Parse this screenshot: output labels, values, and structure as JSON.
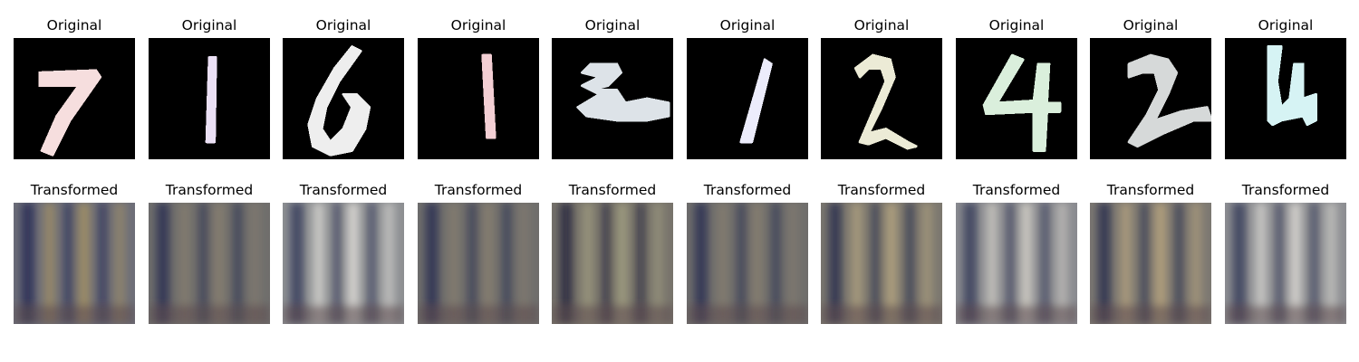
{
  "figure": {
    "original_title": "Original",
    "transformed_title": "Transformed",
    "originals": [
      {
        "digit": "7",
        "tint": "#f6dede"
      },
      {
        "digit": "1",
        "tint": "#ebe0f5"
      },
      {
        "digit": "6",
        "tint": "#eeeeee"
      },
      {
        "digit": "1",
        "tint": "#f3cfd4"
      },
      {
        "digit": "2",
        "tint": "#dde3e8"
      },
      {
        "digit": "1",
        "tint": "#ececfb"
      },
      {
        "digit": "2",
        "tint": "#ecebd6"
      },
      {
        "digit": "4",
        "tint": "#daefdc"
      },
      {
        "digit": "2",
        "tint": "#d6d9d9"
      },
      {
        "digit": "4",
        "tint": "#d6f3f4"
      }
    ],
    "transformed": [
      {
        "base": "#6d6e78",
        "accent": "#a99461",
        "dark": "#2c3055"
      },
      {
        "base": "#6f6e6c",
        "accent": "#8a8070",
        "dark": "#2e3453"
      },
      {
        "base": "#8d8f92",
        "accent": "#e5e3dd",
        "dark": "#3a3f5e"
      },
      {
        "base": "#6f6e6c",
        "accent": "#8a8070",
        "dark": "#2e3453"
      },
      {
        "base": "#77736b",
        "accent": "#a5a183",
        "dark": "#2c2c40"
      },
      {
        "base": "#6f6e6c",
        "accent": "#8a8070",
        "dark": "#2e3453"
      },
      {
        "base": "#7b776f",
        "accent": "#b9a882",
        "dark": "#30334f"
      },
      {
        "base": "#8a8b90",
        "accent": "#d9d6cb",
        "dark": "#3b3f5c"
      },
      {
        "base": "#7c7872",
        "accent": "#bda87f",
        "dark": "#2f334f"
      },
      {
        "base": "#8d8e92",
        "accent": "#e1dfd8",
        "dark": "#3a3e5c"
      }
    ]
  }
}
